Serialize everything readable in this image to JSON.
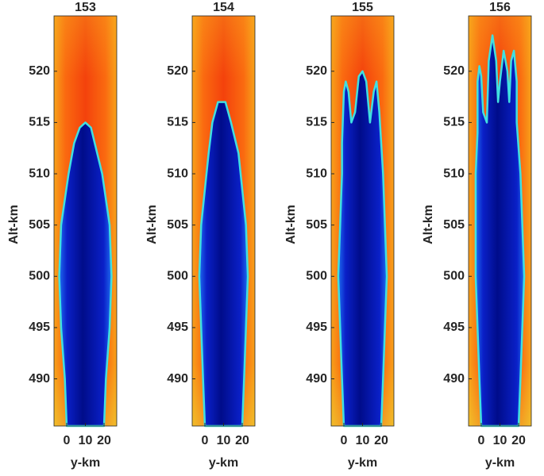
{
  "chart_data": [
    {
      "type": "heatmap",
      "title": "153",
      "xlabel": "y-km",
      "ylabel": "Alt-km",
      "xlim": [
        -6.8,
        26.8
      ],
      "ylim": [
        485.4,
        525.4
      ],
      "xticks": [
        0,
        10,
        20
      ],
      "yticks": [
        490,
        495,
        500,
        505,
        510,
        515,
        520
      ]
    },
    {
      "type": "heatmap",
      "title": "154",
      "xlabel": "y-km",
      "ylabel": "Alt-km",
      "xlim": [
        -6.8,
        26.8
      ],
      "ylim": [
        485.4,
        525.4
      ],
      "xticks": [
        0,
        10,
        20
      ],
      "yticks": [
        490,
        495,
        500,
        505,
        510,
        515,
        520
      ]
    },
    {
      "type": "heatmap",
      "title": "155",
      "xlabel": "y-km",
      "ylabel": "Alt-km",
      "xlim": [
        -6.8,
        26.8
      ],
      "ylim": [
        485.4,
        525.4
      ],
      "xticks": [
        0,
        10,
        20
      ],
      "yticks": [
        490,
        495,
        500,
        505,
        510,
        515,
        520
      ]
    },
    {
      "type": "heatmap",
      "title": "156",
      "xlabel": "y-km",
      "ylabel": "Alt-km",
      "xlim": [
        -6.8,
        26.8
      ],
      "ylim": [
        485.4,
        525.4
      ],
      "xticks": [
        0,
        10,
        20
      ],
      "yticks": [
        490,
        495,
        500,
        505,
        510,
        515,
        520
      ]
    }
  ]
}
